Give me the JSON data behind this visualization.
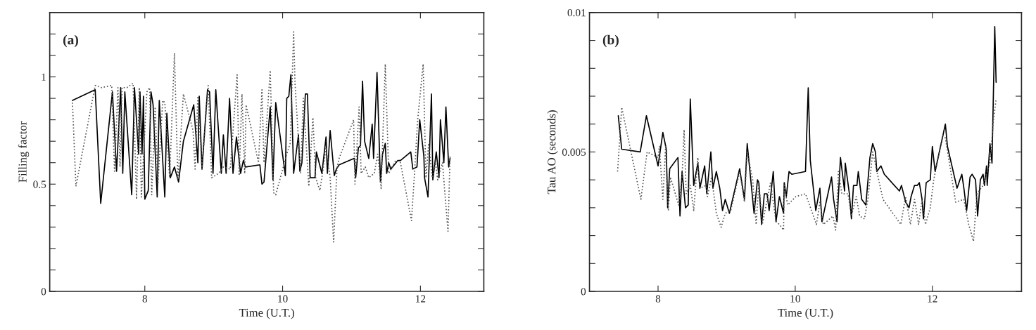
{
  "chart_data": [
    {
      "type": "line",
      "xlabel": "Time (U.T.)",
      "ylabel": "Filling factor",
      "annotations": [
        "(a)"
      ],
      "xlim": [
        6.62,
        12.92
      ],
      "xticks": [
        8,
        10,
        12
      ],
      "ylim": [
        0,
        1.3
      ],
      "yticks": [
        0,
        {
          "value": 0.1,
          "label": null
        },
        {
          "value": 0.2,
          "label": null
        },
        {
          "value": 0.3,
          "label": null
        },
        {
          "value": 0.4,
          "label": null
        },
        0.5,
        {
          "value": 0.6,
          "label": null
        },
        {
          "value": 0.7,
          "label": null
        },
        {
          "value": 0.8,
          "label": null
        },
        {
          "value": 0.9,
          "label": null
        },
        1,
        {
          "value": 1.1,
          "label": null
        },
        {
          "value": 1.2,
          "label": null
        }
      ],
      "grid": false,
      "legend": false,
      "series": [
        {
          "color": "#000000",
          "line_style": "solid",
          "x": [
            6.95,
            7.28,
            7.36,
            7.53,
            7.59,
            7.65,
            7.68,
            7.71,
            7.81,
            7.85,
            7.91,
            7.93,
            7.96,
            7.98,
            8.0,
            8.05,
            8.09,
            8.12,
            8.18,
            8.21,
            8.29,
            8.32,
            8.37,
            8.43,
            8.49,
            8.56,
            8.71,
            8.77,
            8.79,
            8.83,
            8.91,
            8.94,
            8.99,
            9.03,
            9.11,
            9.14,
            9.18,
            9.23,
            9.28,
            9.33,
            9.36,
            9.39,
            9.43,
            9.46,
            9.67,
            9.7,
            9.73,
            9.82,
            9.86,
            9.9,
            10.04,
            10.06,
            10.09,
            10.12,
            10.16,
            10.23,
            10.25,
            10.28,
            10.33,
            10.36,
            10.4,
            10.43,
            10.47,
            10.49,
            10.57,
            10.63,
            10.65,
            10.69,
            10.75,
            10.78,
            10.82,
            11.04,
            11.06,
            11.1,
            11.13,
            11.16,
            11.19,
            11.25,
            11.3,
            11.32,
            11.37,
            11.42,
            11.45,
            11.49,
            11.51,
            11.54,
            11.57,
            11.67,
            11.71,
            11.86,
            11.89,
            11.95,
            11.99,
            12.05,
            12.06,
            12.11,
            12.16,
            12.18,
            12.23,
            12.27,
            12.29,
            12.34,
            12.37,
            12.41,
            12.43
          ],
          "values": [
            0.89,
            0.94,
            0.41,
            0.93,
            0.56,
            0.95,
            0.55,
            0.93,
            0.45,
            0.95,
            0.64,
            0.93,
            0.64,
            0.91,
            0.43,
            0.47,
            0.93,
            0.87,
            0.44,
            0.89,
            0.44,
            0.83,
            0.53,
            0.58,
            0.51,
            0.7,
            0.87,
            0.6,
            0.91,
            0.57,
            0.94,
            0.93,
            0.55,
            0.94,
            0.55,
            0.73,
            0.55,
            0.9,
            0.55,
            0.72,
            0.64,
            0.55,
            0.61,
            0.58,
            0.59,
            0.5,
            0.51,
            0.86,
            0.52,
            0.88,
            0.54,
            0.9,
            0.91,
            1.01,
            0.55,
            0.73,
            0.56,
            0.6,
            0.92,
            0.92,
            0.53,
            0.53,
            0.53,
            0.65,
            0.55,
            0.72,
            0.55,
            0.75,
            0.54,
            0.57,
            0.59,
            0.62,
            0.53,
            0.67,
            0.68,
            0.98,
            0.7,
            0.62,
            0.78,
            0.62,
            1.02,
            0.51,
            0.64,
            0.69,
            0.55,
            0.6,
            0.57,
            0.61,
            0.61,
            0.65,
            0.57,
            0.58,
            0.8,
            0.63,
            0.53,
            0.44,
            0.92,
            0.52,
            0.65,
            0.53,
            0.8,
            0.6,
            0.86,
            0.58,
            0.62
          ]
        },
        {
          "color": "#555555",
          "line_style": "dotted",
          "x": [
            6.95,
            7.0,
            7.28,
            7.37,
            7.52,
            7.56,
            7.61,
            7.64,
            7.67,
            7.74,
            7.83,
            7.88,
            7.92,
            7.95,
            8.03,
            8.07,
            8.1,
            8.15,
            8.19,
            8.26,
            8.29,
            8.36,
            8.43,
            8.48,
            8.56,
            8.7,
            8.73,
            8.77,
            8.83,
            8.92,
            8.97,
            9.07,
            9.14,
            9.24,
            9.34,
            9.37,
            9.41,
            9.45,
            9.47,
            9.65,
            9.7,
            9.73,
            9.82,
            9.87,
            9.9,
            10.06,
            10.11,
            10.16,
            10.18,
            10.26,
            10.3,
            10.38,
            10.44,
            10.48,
            10.54,
            10.57,
            10.63,
            10.69,
            10.74,
            10.79,
            10.82,
            11.03,
            11.05,
            11.11,
            11.14,
            11.2,
            11.25,
            11.33,
            11.38,
            11.43,
            11.49,
            11.54,
            11.64,
            11.71,
            11.87,
            11.91,
            11.96,
            12.04,
            12.08,
            12.12,
            12.17,
            12.22,
            12.25,
            12.32,
            12.4,
            12.43
          ],
          "values": [
            0.88,
            0.49,
            0.96,
            0.95,
            0.96,
            0.56,
            0.95,
            0.58,
            0.95,
            0.95,
            0.97,
            0.43,
            0.95,
            0.44,
            0.93,
            0.95,
            0.45,
            0.86,
            0.5,
            0.89,
            0.88,
            0.53,
            1.11,
            0.52,
            0.92,
            0.75,
            0.57,
            0.91,
            0.57,
            0.96,
            0.53,
            0.55,
            0.58,
            0.57,
            1.01,
            0.54,
            0.92,
            0.55,
            0.87,
            0.6,
            0.94,
            0.6,
            1.03,
            0.46,
            0.45,
            0.64,
            0.69,
            1.21,
            0.97,
            0.55,
            0.9,
            0.49,
            0.81,
            0.53,
            0.47,
            0.53,
            0.67,
            0.53,
            0.23,
            0.58,
            0.62,
            0.8,
            0.5,
            0.86,
            0.55,
            0.58,
            0.53,
            0.55,
            0.64,
            0.48,
            1.06,
            0.55,
            0.61,
            0.6,
            0.33,
            0.53,
            0.8,
            1.06,
            0.53,
            0.69,
            0.53,
            0.6,
            0.52,
            0.6,
            0.28,
            0.63
          ]
        }
      ]
    },
    {
      "type": "line",
      "xlabel": "Time (U.T.)",
      "ylabel": "Tau AO (seconds)",
      "annotations": [
        "(b)"
      ],
      "xlim": [
        7.0,
        13.3
      ],
      "xticks": [
        8,
        10,
        12
      ],
      "ylim": [
        0,
        0.01
      ],
      "yticks": [
        0,
        {
          "value": 0.001,
          "label": null
        },
        {
          "value": 0.002,
          "label": null
        },
        {
          "value": 0.003,
          "label": null
        },
        {
          "value": 0.004,
          "label": null
        },
        0.005,
        {
          "value": 0.006,
          "label": null
        },
        {
          "value": 0.007,
          "label": null
        },
        {
          "value": 0.008,
          "label": null
        },
        {
          "value": 0.009,
          "label": null
        },
        0.01
      ],
      "grid": false,
      "legend": false,
      "series": [
        {
          "color": "#000000",
          "line_style": "solid",
          "x": [
            7.42,
            7.47,
            7.74,
            7.83,
            8.0,
            8.07,
            8.12,
            8.14,
            8.17,
            8.29,
            8.32,
            8.35,
            8.4,
            8.44,
            8.47,
            8.52,
            8.58,
            8.61,
            8.68,
            8.71,
            8.77,
            8.8,
            8.85,
            8.9,
            8.94,
            8.98,
            9.04,
            9.19,
            9.26,
            9.3,
            9.4,
            9.45,
            9.47,
            9.51,
            9.55,
            9.59,
            9.62,
            9.68,
            9.72,
            9.77,
            9.83,
            9.84,
            9.87,
            9.91,
            9.95,
            10.15,
            10.19,
            10.22,
            10.3,
            10.36,
            10.39,
            10.53,
            10.56,
            10.61,
            10.66,
            10.72,
            10.73,
            10.79,
            10.82,
            10.85,
            10.9,
            10.92,
            10.97,
            11.03,
            11.09,
            11.13,
            11.17,
            11.19,
            11.25,
            11.3,
            11.52,
            11.55,
            11.61,
            11.66,
            11.69,
            11.74,
            11.78,
            11.81,
            11.85,
            11.87,
            11.91,
            11.97,
            12.0,
            12.04,
            12.19,
            12.22,
            12.36,
            12.43,
            12.46,
            12.5,
            12.55,
            12.58,
            12.63,
            12.66,
            12.7,
            12.74,
            12.76,
            12.79,
            12.8,
            12.84,
            12.87,
            12.91,
            12.93
          ],
          "values": [
            0.0063,
            0.0051,
            0.005,
            0.0063,
            0.0045,
            0.0057,
            0.0051,
            0.003,
            0.0044,
            0.0048,
            0.0027,
            0.0043,
            0.003,
            0.0031,
            0.0069,
            0.0038,
            0.0046,
            0.0037,
            0.0045,
            0.0035,
            0.005,
            0.0037,
            0.0043,
            0.0037,
            0.0029,
            0.0033,
            0.0028,
            0.0044,
            0.0033,
            0.0053,
            0.0028,
            0.004,
            0.0039,
            0.0024,
            0.0035,
            0.0035,
            0.0029,
            0.0043,
            0.0025,
            0.0034,
            0.0028,
            0.0039,
            0.0034,
            0.0043,
            0.0042,
            0.0043,
            0.0073,
            0.0047,
            0.0029,
            0.0037,
            0.0025,
            0.0041,
            0.0033,
            0.0025,
            0.0048,
            0.0036,
            0.0046,
            0.0035,
            0.0026,
            0.0038,
            0.0038,
            0.0043,
            0.0033,
            0.0031,
            0.0048,
            0.0053,
            0.005,
            0.0043,
            0.0045,
            0.0042,
            0.0036,
            0.0038,
            0.0032,
            0.003,
            0.0034,
            0.0038,
            0.0038,
            0.0039,
            0.0033,
            0.0026,
            0.0039,
            0.004,
            0.0052,
            0.0043,
            0.006,
            0.0052,
            0.0037,
            0.0042,
            0.0037,
            0.0029,
            0.0041,
            0.0042,
            0.004,
            0.0027,
            0.004,
            0.0042,
            0.0038,
            0.0045,
            0.0038,
            0.0053,
            0.0046,
            0.0095,
            0.0075
          ]
        },
        {
          "color": "#555555",
          "line_style": "dotted",
          "x": [
            7.41,
            7.47,
            7.75,
            7.84,
            8.0,
            8.02,
            8.07,
            8.11,
            8.15,
            8.18,
            8.3,
            8.35,
            8.38,
            8.41,
            8.47,
            8.52,
            8.58,
            8.61,
            8.7,
            8.72,
            8.78,
            8.85,
            8.92,
            8.98,
            9.06,
            9.19,
            9.26,
            9.3,
            9.38,
            9.43,
            9.47,
            9.52,
            9.64,
            9.72,
            9.77,
            9.83,
            9.84,
            9.89,
            10.01,
            10.15,
            10.31,
            10.36,
            10.41,
            10.55,
            10.59,
            10.63,
            10.68,
            10.77,
            10.82,
            10.89,
            10.94,
            11.01,
            11.06,
            11.13,
            11.2,
            11.28,
            11.54,
            11.61,
            11.68,
            11.74,
            11.8,
            11.85,
            11.9,
            11.97,
            12.02,
            12.15,
            12.19,
            12.34,
            12.46,
            12.53,
            12.6,
            12.65,
            12.74,
            12.84,
            12.89,
            12.93
          ],
          "values": [
            0.0043,
            0.0066,
            0.0033,
            0.005,
            0.0048,
            0.0052,
            0.0033,
            0.0052,
            0.0029,
            0.0041,
            0.0031,
            0.0041,
            0.0058,
            0.0035,
            0.0038,
            0.0029,
            0.0048,
            0.0037,
            0.0038,
            0.0034,
            0.0041,
            0.0028,
            0.0023,
            0.0028,
            0.0029,
            0.0043,
            0.0032,
            0.005,
            0.004,
            0.0024,
            0.0039,
            0.0024,
            0.0039,
            0.0025,
            0.0024,
            0.0022,
            0.0038,
            0.0031,
            0.0034,
            0.0035,
            0.0024,
            0.0032,
            0.0024,
            0.0027,
            0.0022,
            0.0043,
            0.0035,
            0.0035,
            0.0027,
            0.0034,
            0.0027,
            0.0026,
            0.0033,
            0.005,
            0.0042,
            0.0033,
            0.0024,
            0.0034,
            0.0024,
            0.0033,
            0.0024,
            0.0033,
            0.0024,
            0.003,
            0.004,
            0.0056,
            0.0055,
            0.0032,
            0.0033,
            0.0024,
            0.0018,
            0.0035,
            0.0038,
            0.0046,
            0.0061,
            0.0069
          ]
        }
      ]
    }
  ]
}
